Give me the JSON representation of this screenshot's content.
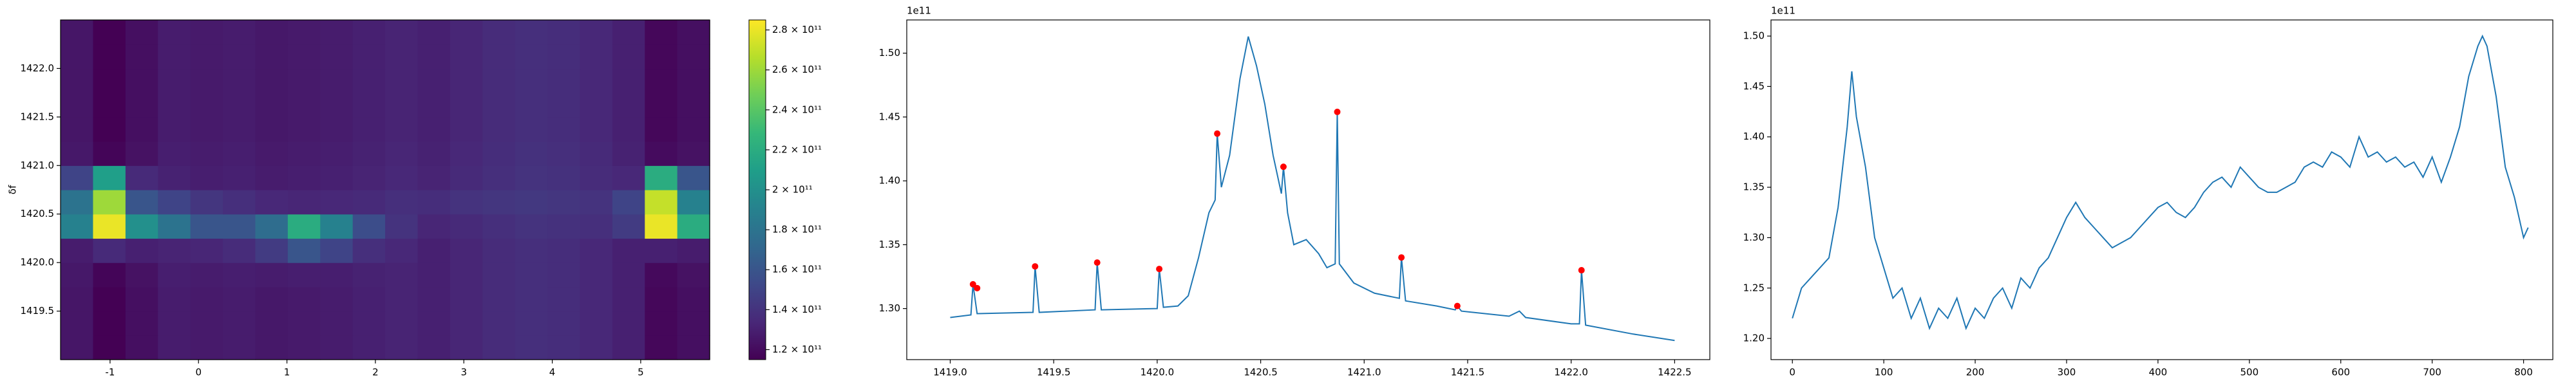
{
  "chart_data": [
    {
      "type": "heatmap",
      "ylabel": "δf",
      "colormap": "viridis",
      "xlim": [
        -1.56,
        5.78
      ],
      "ylim": [
        1419.0,
        1422.5
      ],
      "xticks": [
        -1,
        0,
        1,
        2,
        3,
        4,
        5
      ],
      "yticks": [
        1419.5,
        {
          "value": 1420,
          "label": "1420.0"
        },
        1420.5,
        {
          "value": 1421,
          "label": "1421.0"
        },
        1421.5,
        {
          "value": 1422,
          "label": "1422.0"
        }
      ],
      "x": [
        -1.376,
        -1.009,
        -0.642,
        -0.275,
        0.092,
        0.459,
        0.826,
        1.193,
        1.56,
        1.927,
        2.294,
        2.661,
        3.028,
        3.395,
        3.762,
        4.129,
        4.496,
        4.863,
        5.23,
        5.597
      ],
      "y": [
        1419.125,
        1419.375,
        1419.625,
        1419.875,
        1420.125,
        1420.375,
        1420.625,
        1420.875,
        1421.125,
        1421.375,
        1421.625,
        1421.875,
        1422.125,
        1422.375
      ],
      "z": [
        [
          125000000000.0,
          115000000000.0,
          122000000000.0,
          128000000000.0,
          127000000000.0,
          128000000000.0,
          126000000000.0,
          127000000000.0,
          128000000000.0,
          130000000000.0,
          132000000000.0,
          130000000000.0,
          133000000000.0,
          136000000000.0,
          138000000000.0,
          137000000000.0,
          134000000000.0,
          130000000000.0,
          118000000000.0,
          122000000000.0
        ],
        [
          125000000000.0,
          115000000000.0,
          122000000000.0,
          128000000000.0,
          127000000000.0,
          128000000000.0,
          126000000000.0,
          127000000000.0,
          128000000000.0,
          130000000000.0,
          132000000000.0,
          130000000000.0,
          133000000000.0,
          136000000000.0,
          138000000000.0,
          137000000000.0,
          134000000000.0,
          130000000000.0,
          118000000000.0,
          122000000000.0
        ],
        [
          125000000000.0,
          115000000000.0,
          122000000000.0,
          128000000000.0,
          127000000000.0,
          128000000000.0,
          126000000000.0,
          127000000000.0,
          128000000000.0,
          130000000000.0,
          132000000000.0,
          130000000000.0,
          133000000000.0,
          136000000000.0,
          138000000000.0,
          137000000000.0,
          134000000000.0,
          130000000000.0,
          118000000000.0,
          122000000000.0
        ],
        [
          126000000000.0,
          117000000000.0,
          123000000000.0,
          129000000000.0,
          128000000000.0,
          129000000000.0,
          128000000000.0,
          129000000000.0,
          129000000000.0,
          131000000000.0,
          132000000000.0,
          130000000000.0,
          133000000000.0,
          136000000000.0,
          138000000000.0,
          137000000000.0,
          134000000000.0,
          130000000000.0,
          119000000000.0,
          123000000000.0
        ],
        [
          128000000000.0,
          135000000000.0,
          130000000000.0,
          132000000000.0,
          133000000000.0,
          136000000000.0,
          145000000000.0,
          160000000000.0,
          150000000000.0,
          138000000000.0,
          134000000000.0,
          130000000000.0,
          133000000000.0,
          136000000000.0,
          138000000000.0,
          137000000000.0,
          134000000000.0,
          130000000000.0,
          130000000000.0,
          128000000000.0
        ],
        [
          190000000000.0,
          280000000000.0,
          200000000000.0,
          180000000000.0,
          160000000000.0,
          160000000000.0,
          175000000000.0,
          220000000000.0,
          190000000000.0,
          155000000000.0,
          140000000000.0,
          133000000000.0,
          135000000000.0,
          138000000000.0,
          140000000000.0,
          139000000000.0,
          138000000000.0,
          145000000000.0,
          280000000000.0,
          220000000000.0
        ],
        [
          180000000000.0,
          260000000000.0,
          160000000000.0,
          150000000000.0,
          142000000000.0,
          138000000000.0,
          134000000000.0,
          133000000000.0,
          134000000000.0,
          135000000000.0,
          138000000000.0,
          137000000000.0,
          140000000000.0,
          142000000000.0,
          143000000000.0,
          142000000000.0,
          140000000000.0,
          150000000000.0,
          270000000000.0,
          190000000000.0
        ],
        [
          150000000000.0,
          210000000000.0,
          135000000000.0,
          131000000000.0,
          129000000000.0,
          130000000000.0,
          128000000000.0,
          129000000000.0,
          130000000000.0,
          132000000000.0,
          134000000000.0,
          132000000000.0,
          135000000000.0,
          138000000000.0,
          140000000000.0,
          139000000000.0,
          136000000000.0,
          134000000000.0,
          220000000000.0,
          160000000000.0
        ],
        [
          126000000000.0,
          117000000000.0,
          123000000000.0,
          129000000000.0,
          128000000000.0,
          129000000000.0,
          127000000000.0,
          128000000000.0,
          129000000000.0,
          131000000000.0,
          133000000000.0,
          131000000000.0,
          134000000000.0,
          137000000000.0,
          139000000000.0,
          138000000000.0,
          135000000000.0,
          131000000000.0,
          120000000000.0,
          123000000000.0
        ],
        [
          125000000000.0,
          115000000000.0,
          122000000000.0,
          128000000000.0,
          127000000000.0,
          128000000000.0,
          126000000000.0,
          127000000000.0,
          128000000000.0,
          130000000000.0,
          132000000000.0,
          130000000000.0,
          133000000000.0,
          136000000000.0,
          138000000000.0,
          137000000000.0,
          134000000000.0,
          130000000000.0,
          118000000000.0,
          122000000000.0
        ],
        [
          125000000000.0,
          115000000000.0,
          122000000000.0,
          128000000000.0,
          127000000000.0,
          128000000000.0,
          126000000000.0,
          127000000000.0,
          128000000000.0,
          130000000000.0,
          132000000000.0,
          130000000000.0,
          133000000000.0,
          136000000000.0,
          138000000000.0,
          137000000000.0,
          134000000000.0,
          130000000000.0,
          118000000000.0,
          122000000000.0
        ],
        [
          125000000000.0,
          115000000000.0,
          122000000000.0,
          128000000000.0,
          127000000000.0,
          128000000000.0,
          126000000000.0,
          127000000000.0,
          128000000000.0,
          130000000000.0,
          132000000000.0,
          130000000000.0,
          133000000000.0,
          136000000000.0,
          138000000000.0,
          137000000000.0,
          134000000000.0,
          130000000000.0,
          118000000000.0,
          122000000000.0
        ],
        [
          125000000000.0,
          115000000000.0,
          122000000000.0,
          128000000000.0,
          127000000000.0,
          128000000000.0,
          126000000000.0,
          127000000000.0,
          128000000000.0,
          130000000000.0,
          132000000000.0,
          130000000000.0,
          133000000000.0,
          136000000000.0,
          138000000000.0,
          137000000000.0,
          134000000000.0,
          130000000000.0,
          118000000000.0,
          122000000000.0
        ],
        [
          125000000000.0,
          115000000000.0,
          122000000000.0,
          128000000000.0,
          127000000000.0,
          128000000000.0,
          126000000000.0,
          127000000000.0,
          128000000000.0,
          130000000000.0,
          132000000000.0,
          130000000000.0,
          133000000000.0,
          136000000000.0,
          138000000000.0,
          137000000000.0,
          134000000000.0,
          130000000000.0,
          118000000000.0,
          122000000000.0
        ]
      ],
      "clim": [
        115000000000.0,
        285000000000.0
      ],
      "cticks": [
        {
          "value": 120000000000.0,
          "label": "1.2 × 10¹¹"
        },
        {
          "value": 140000000000.0,
          "label": "1.4 × 10¹¹"
        },
        {
          "value": 160000000000.0,
          "label": "1.6 × 10¹¹"
        },
        {
          "value": 180000000000.0,
          "label": "1.8 × 10¹¹"
        },
        {
          "value": 200000000000.0,
          "label": "2 × 10¹¹"
        },
        {
          "value": 220000000000.0,
          "label": "2.2 × 10¹¹"
        },
        {
          "value": 240000000000.0,
          "label": "2.4 × 10¹¹"
        },
        {
          "value": 260000000000.0,
          "label": "2.6 × 10¹¹"
        },
        {
          "value": 280000000000.0,
          "label": "2.8 × 10¹¹"
        }
      ]
    },
    {
      "type": "line",
      "offset_label": "1e11",
      "xlim": [
        1418.79,
        1422.67
      ],
      "ylim": [
        1.26,
        1.526
      ],
      "xticks": [
        {
          "value": 1419,
          "label": "1419.0"
        },
        1419.5,
        {
          "value": 1420,
          "label": "1420.0"
        },
        1420.5,
        {
          "value": 1421,
          "label": "1421.0"
        },
        1421.5,
        {
          "value": 1422,
          "label": "1422.0"
        },
        1422.5
      ],
      "yticks": [
        {
          "value": 1.3,
          "label": "1.30"
        },
        1.35,
        {
          "value": 1.4,
          "label": "1.40"
        },
        1.45,
        {
          "value": 1.5,
          "label": "1.50"
        }
      ],
      "series": [
        {
          "style": "line",
          "color": "#1f77b4",
          "x": [
            1419.0,
            1419.1,
            1419.11,
            1419.13,
            1419.4,
            1419.41,
            1419.43,
            1419.7,
            1419.71,
            1419.73,
            1420.0,
            1420.01,
            1420.03,
            1420.1,
            1420.15,
            1420.2,
            1420.25,
            1420.28,
            1420.29,
            1420.31,
            1420.35,
            1420.4,
            1420.44,
            1420.48,
            1420.52,
            1420.56,
            1420.6,
            1420.61,
            1420.63,
            1420.66,
            1420.72,
            1420.78,
            1420.82,
            1420.86,
            1420.87,
            1420.88,
            1420.95,
            1421.05,
            1421.17,
            1421.18,
            1421.2,
            1421.35,
            1421.44,
            1421.45,
            1421.47,
            1421.7,
            1421.75,
            1421.78,
            1422.0,
            1422.04,
            1422.05,
            1422.07,
            1422.3,
            1422.5
          ],
          "values": [
            1.293,
            1.295,
            1.319,
            1.296,
            1.297,
            1.333,
            1.297,
            1.299,
            1.336,
            1.299,
            1.3,
            1.331,
            1.301,
            1.302,
            1.31,
            1.34,
            1.375,
            1.385,
            1.437,
            1.395,
            1.42,
            1.48,
            1.513,
            1.49,
            1.46,
            1.42,
            1.39,
            1.411,
            1.375,
            1.35,
            1.354,
            1.343,
            1.332,
            1.335,
            1.454,
            1.335,
            1.32,
            1.312,
            1.308,
            1.34,
            1.306,
            1.302,
            1.299,
            1.302,
            1.298,
            1.294,
            1.298,
            1.293,
            1.288,
            1.288,
            1.33,
            1.287,
            1.28,
            1.275
          ]
        },
        {
          "style": "markers",
          "color": "#ff0000",
          "x": [
            1419.11,
            1419.13,
            1419.41,
            1419.71,
            1420.01,
            1420.29,
            1420.61,
            1420.87,
            1421.18,
            1421.45,
            1422.05
          ],
          "values": [
            1.319,
            1.316,
            1.333,
            1.336,
            1.331,
            1.437,
            1.411,
            1.454,
            1.34,
            1.302,
            1.33
          ]
        }
      ]
    },
    {
      "type": "line",
      "offset_label": "1e11",
      "xlim": [
        -23.4,
        832
      ],
      "ylim": [
        1.179,
        1.516
      ],
      "xticks": [
        0,
        100,
        200,
        300,
        400,
        500,
        600,
        700,
        800
      ],
      "yticks": [
        {
          "value": 1.2,
          "label": "1.20"
        },
        1.25,
        {
          "value": 1.3,
          "label": "1.30"
        },
        1.35,
        {
          "value": 1.4,
          "label": "1.40"
        },
        1.45,
        {
          "value": 1.5,
          "label": "1.50"
        }
      ],
      "series": [
        {
          "style": "line",
          "color": "#1f77b4",
          "x": [
            0,
            10,
            20,
            30,
            40,
            50,
            60,
            65,
            70,
            80,
            90,
            100,
            110,
            120,
            130,
            140,
            150,
            160,
            170,
            180,
            190,
            200,
            210,
            220,
            230,
            240,
            250,
            260,
            270,
            280,
            290,
            300,
            310,
            320,
            330,
            340,
            350,
            360,
            370,
            380,
            390,
            400,
            410,
            420,
            430,
            440,
            450,
            460,
            470,
            480,
            490,
            500,
            510,
            520,
            530,
            540,
            550,
            560,
            570,
            580,
            590,
            600,
            610,
            620,
            630,
            640,
            650,
            660,
            670,
            680,
            690,
            700,
            710,
            720,
            730,
            740,
            750,
            755,
            760,
            770,
            780,
            790,
            800,
            805
          ],
          "values": [
            1.22,
            1.25,
            1.26,
            1.27,
            1.28,
            1.33,
            1.41,
            1.465,
            1.42,
            1.37,
            1.3,
            1.27,
            1.24,
            1.25,
            1.22,
            1.24,
            1.21,
            1.23,
            1.22,
            1.24,
            1.21,
            1.23,
            1.22,
            1.24,
            1.25,
            1.23,
            1.26,
            1.25,
            1.27,
            1.28,
            1.3,
            1.32,
            1.335,
            1.32,
            1.31,
            1.3,
            1.29,
            1.295,
            1.3,
            1.31,
            1.32,
            1.33,
            1.335,
            1.325,
            1.32,
            1.33,
            1.345,
            1.355,
            1.36,
            1.35,
            1.37,
            1.36,
            1.35,
            1.345,
            1.345,
            1.35,
            1.355,
            1.37,
            1.375,
            1.37,
            1.385,
            1.38,
            1.37,
            1.4,
            1.38,
            1.385,
            1.375,
            1.38,
            1.37,
            1.375,
            1.36,
            1.38,
            1.355,
            1.38,
            1.41,
            1.46,
            1.49,
            1.5,
            1.49,
            1.44,
            1.37,
            1.34,
            1.3,
            1.31
          ]
        }
      ]
    }
  ]
}
